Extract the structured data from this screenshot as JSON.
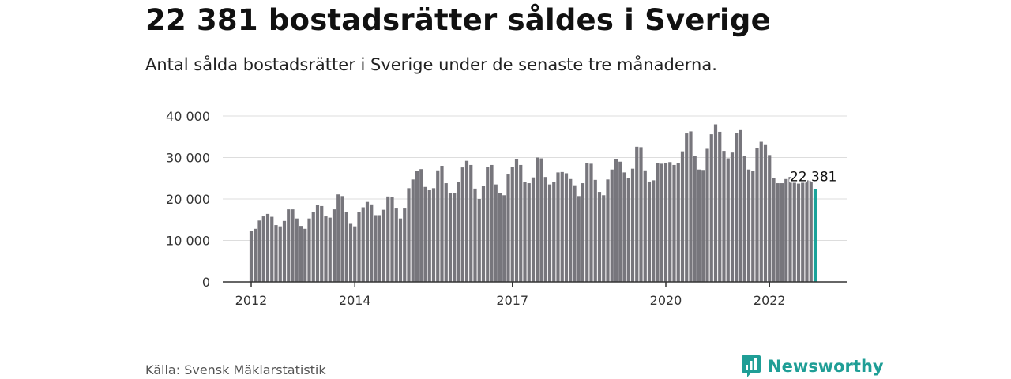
{
  "headline": "22 381 bostadsrätter såldes i Sverige",
  "subtitle": "Antal sålda bostadsrätter i Sverige under de senaste tre månaderna.",
  "source": "Källa: Svensk Mäklarstatistik",
  "brand": {
    "name": "Newsworthy",
    "icon": "newsworthy-logo-icon"
  },
  "colors": {
    "bar": "#77767c",
    "highlight": "#1aa39a",
    "grid": "#dddddd",
    "axis": "#333333",
    "brand": "#1f9e96"
  },
  "chart_data": {
    "type": "bar",
    "title": "22 381 bostadsrätter såldes i Sverige",
    "subtitle": "Antal sålda bostadsrätter i Sverige under de senaste tre månaderna.",
    "xlabel": "",
    "ylabel": "",
    "ylim": [
      0,
      40000
    ],
    "y_ticks": [
      0,
      10000,
      20000,
      30000,
      40000
    ],
    "y_tick_labels": [
      "0",
      "10 000",
      "20 000",
      "30 000",
      "40 000"
    ],
    "x_ticks": [
      {
        "label": "2012",
        "index": 0
      },
      {
        "label": "2014",
        "index": 25
      },
      {
        "label": "2017",
        "index": 63
      },
      {
        "label": "2020",
        "index": 100
      },
      {
        "label": "2022",
        "index": 125
      }
    ],
    "grid": "horizontal",
    "highlight_index": 136,
    "highlight_label": "22 381",
    "values": [
      12300,
      12800,
      14800,
      15800,
      16400,
      15700,
      13700,
      13400,
      14700,
      17500,
      17500,
      15300,
      13500,
      12800,
      15300,
      16900,
      18600,
      18300,
      15800,
      15500,
      17500,
      21100,
      20700,
      16800,
      14000,
      13400,
      16800,
      18000,
      19300,
      18700,
      16100,
      16100,
      17400,
      20600,
      20500,
      17700,
      15300,
      17700,
      22600,
      24700,
      26700,
      27200,
      22900,
      22100,
      22600,
      26900,
      28000,
      23800,
      21500,
      21400,
      24000,
      27600,
      29200,
      28200,
      22500,
      20000,
      23200,
      27800,
      28200,
      23500,
      21500,
      20900,
      25900,
      27800,
      29600,
      28200,
      24000,
      23800,
      25200,
      30000,
      29800,
      25300,
      23500,
      24000,
      26400,
      26500,
      26200,
      24800,
      23300,
      20700,
      23800,
      28700,
      28500,
      24600,
      21700,
      20900,
      24700,
      27100,
      29700,
      29000,
      26400,
      25000,
      27300,
      32600,
      32500,
      26900,
      24200,
      24500,
      28600,
      28500,
      28600,
      28900,
      28200,
      28600,
      31500,
      35800,
      36300,
      30400,
      27100,
      27000,
      32100,
      35600,
      38000,
      36200,
      31600,
      29800,
      31200,
      36000,
      36600,
      30400,
      27100,
      26800,
      32300,
      33800,
      33000,
      30600,
      25000,
      23800,
      23800,
      24800,
      25300,
      24300,
      23700,
      24000,
      24500,
      24400,
      22381
    ]
  }
}
